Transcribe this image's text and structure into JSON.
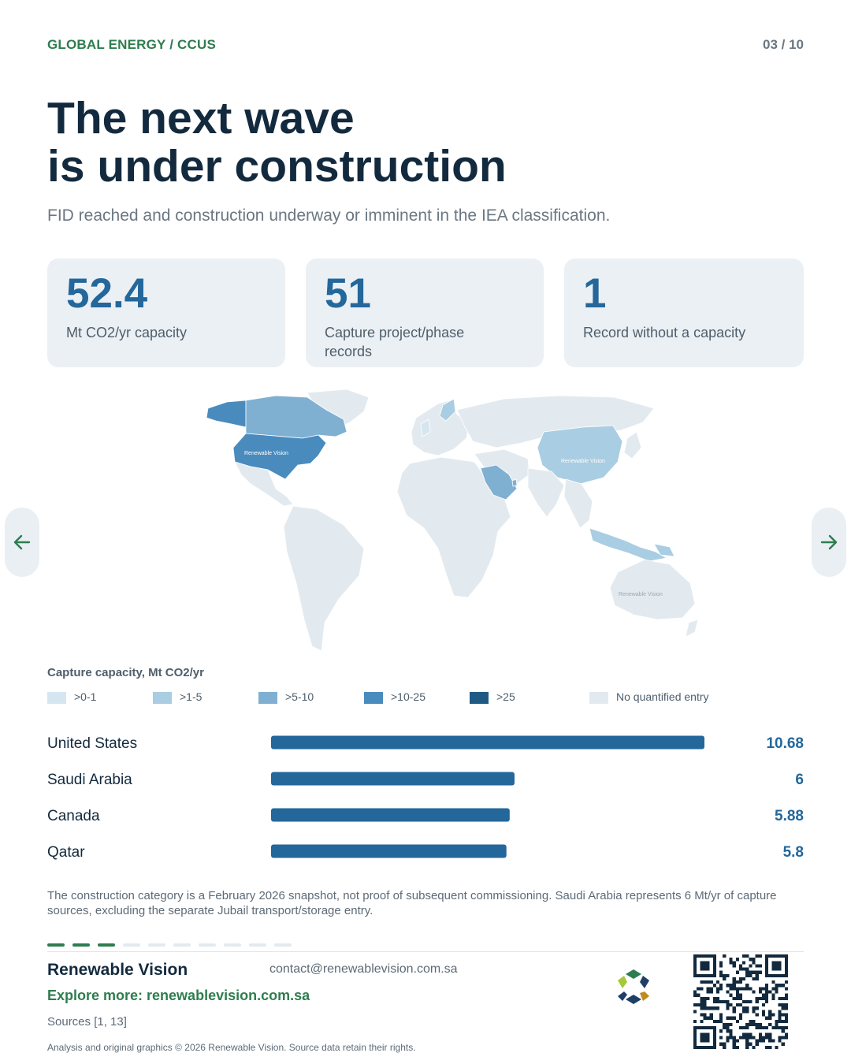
{
  "header": {
    "kicker": "GLOBAL ENERGY / CCUS",
    "pager": "03 / 10"
  },
  "title": {
    "line1": "The next wave",
    "line2": "is under construction"
  },
  "subtitle": "FID reached and construction underway or imminent in the IEA classification.",
  "stats": [
    {
      "value": "52.4",
      "label": "Mt CO2/yr capacity"
    },
    {
      "value": "51",
      "label": "Capture project/phase records"
    },
    {
      "value": "1",
      "label": "Record without a capacity"
    }
  ],
  "map": {
    "watermark": "Renewable Vision",
    "colors": {
      "none": "#e3eaef",
      "bin1": "#d5e6f1",
      "bin2": "#a9cde2",
      "bin3": "#7fb0d2",
      "bin4": "#4a8bbd",
      "bin5": "#1f5a84",
      "border": "#ffffff"
    }
  },
  "legend": {
    "title": "Capture capacity, Mt CO2/yr",
    "items": [
      {
        "label": ">0-1",
        "color": "#d5e6f1"
      },
      {
        "label": ">1-5",
        "color": "#a9cde2"
      },
      {
        "label": ">5-10",
        "color": "#7fb0d2"
      },
      {
        "label": ">10-25",
        "color": "#4a8bbd"
      },
      {
        "label": ">25",
        "color": "#1f5a84"
      },
      {
        "label": "No quantified entry",
        "color": "#e3eaef"
      }
    ]
  },
  "chart_data": {
    "type": "bar",
    "orientation": "horizontal",
    "categories": [
      "United States",
      "Saudi Arabia",
      "Canada",
      "Qatar"
    ],
    "values": [
      10.68,
      6,
      5.88,
      5.8
    ],
    "value_labels": [
      "10.68",
      "6",
      "5.88",
      "5.8"
    ],
    "xlim": [
      0,
      10.68
    ],
    "bar_color": "#23679b",
    "grid": false
  },
  "note": "The construction category is a February 2026 snapshot, not proof of subsequent commissioning. Saudi Arabia represents 6 Mt/yr of capture sources, excluding the separate Jubail transport/storage entry.",
  "progress": {
    "current": 3,
    "total": 10,
    "active_color": "#2e7d4f",
    "inactive_color": "#e3eaef"
  },
  "footer": {
    "brand": "Renewable Vision",
    "email": "contact@renewablevision.com.sa",
    "explore": "Explore more: renewablevision.com.sa",
    "sources": "Sources [1, 13]",
    "copyright": "Analysis and original graphics © 2026 Renewable Vision. Source data retain their rights."
  },
  "icons": {
    "prev": "arrow-left-icon",
    "next": "arrow-right-icon",
    "logo": "renewable-vision-logo-icon",
    "qr": "qr-code"
  },
  "accent_colors": {
    "green": "#2e7d4f",
    "navy": "#132a3e",
    "blue": "#23679b"
  }
}
